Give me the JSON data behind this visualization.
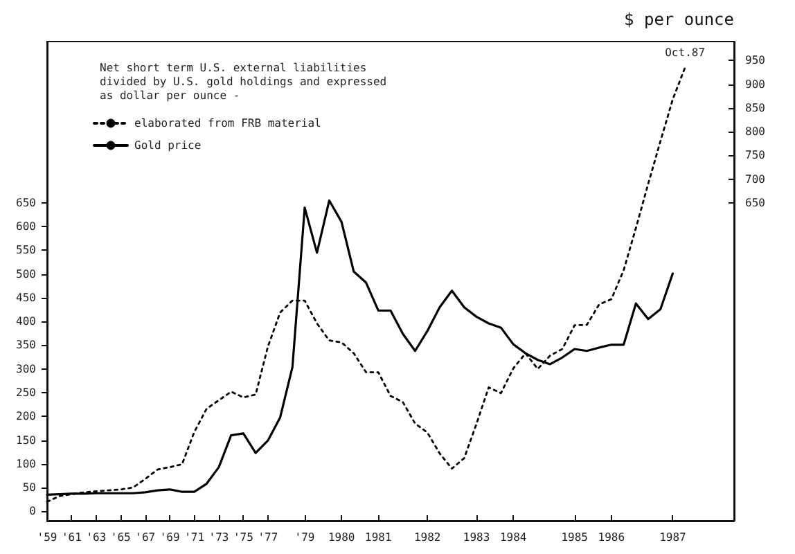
{
  "chart_data": {
    "type": "line",
    "legend_title": "Net short term U.S. external liabilities\ndivided by U.S. gold holdings and expressed\nas dollar per ounce -",
    "y2label": "$ per ounce",
    "categories": [
      "'59",
      null,
      "'61",
      null,
      "'63",
      null,
      "'65",
      null,
      "'67",
      null,
      "'69",
      null,
      "'71",
      null,
      "'73",
      null,
      "'75",
      null,
      "'77",
      null,
      null,
      "'79",
      null,
      null,
      "1980",
      null,
      null,
      "1981",
      null,
      null,
      null,
      "1982",
      null,
      null,
      null,
      "1983",
      null,
      null,
      "1984",
      null,
      null,
      null,
      null,
      "1985",
      null,
      null,
      "1986",
      null,
      null,
      null,
      null,
      "1987",
      null,
      null,
      null,
      null,
      null
    ],
    "series": [
      {
        "name": "elaborated from FRB material",
        "color": "#000000",
        "line_style": "dotted",
        "values": [
          20,
          32,
          36,
          40,
          42,
          44,
          46,
          50,
          68,
          88,
          93,
          99,
          167,
          216,
          234,
          252,
          240,
          246,
          347,
          419,
          444,
          444,
          396,
          360,
          356,
          333,
          293,
          293,
          243,
          230,
          185,
          166,
          122,
          90,
          112,
          184,
          261,
          249,
          301,
          333,
          300,
          328,
          342,
          392,
          393,
          436,
          447,
          508,
          597,
          690,
          780,
          868,
          935,
          null,
          null,
          null,
          null
        ]
      },
      {
        "name": "Gold price",
        "color": "#000000",
        "line_style": "solid",
        "values": [
          35,
          36,
          37,
          37,
          38,
          38,
          38,
          38,
          40,
          44,
          46,
          41,
          41,
          58,
          93,
          160,
          164,
          123,
          149,
          198,
          304,
          640,
          545,
          655,
          610,
          505,
          482,
          423,
          423,
          374,
          338,
          380,
          430,
          465,
          430,
          410,
          396,
          387,
          352,
          333,
          319,
          310,
          324,
          342,
          338,
          345,
          351,
          351,
          438,
          405,
          426,
          501,
          null,
          null,
          null,
          null,
          null
        ]
      }
    ],
    "annotations": [
      {
        "text": "Oct.87",
        "y": 935
      }
    ],
    "ylim": [
      -20,
      990
    ],
    "yticks": [
      0,
      50,
      100,
      150,
      200,
      250,
      300,
      350,
      400,
      450,
      500,
      550,
      600,
      650
    ],
    "y2lim": [
      -20,
      990
    ],
    "y2ticks": [
      650,
      700,
      750,
      800,
      850,
      900,
      950
    ],
    "legend": "top left",
    "grid": false,
    "marker": "none"
  }
}
